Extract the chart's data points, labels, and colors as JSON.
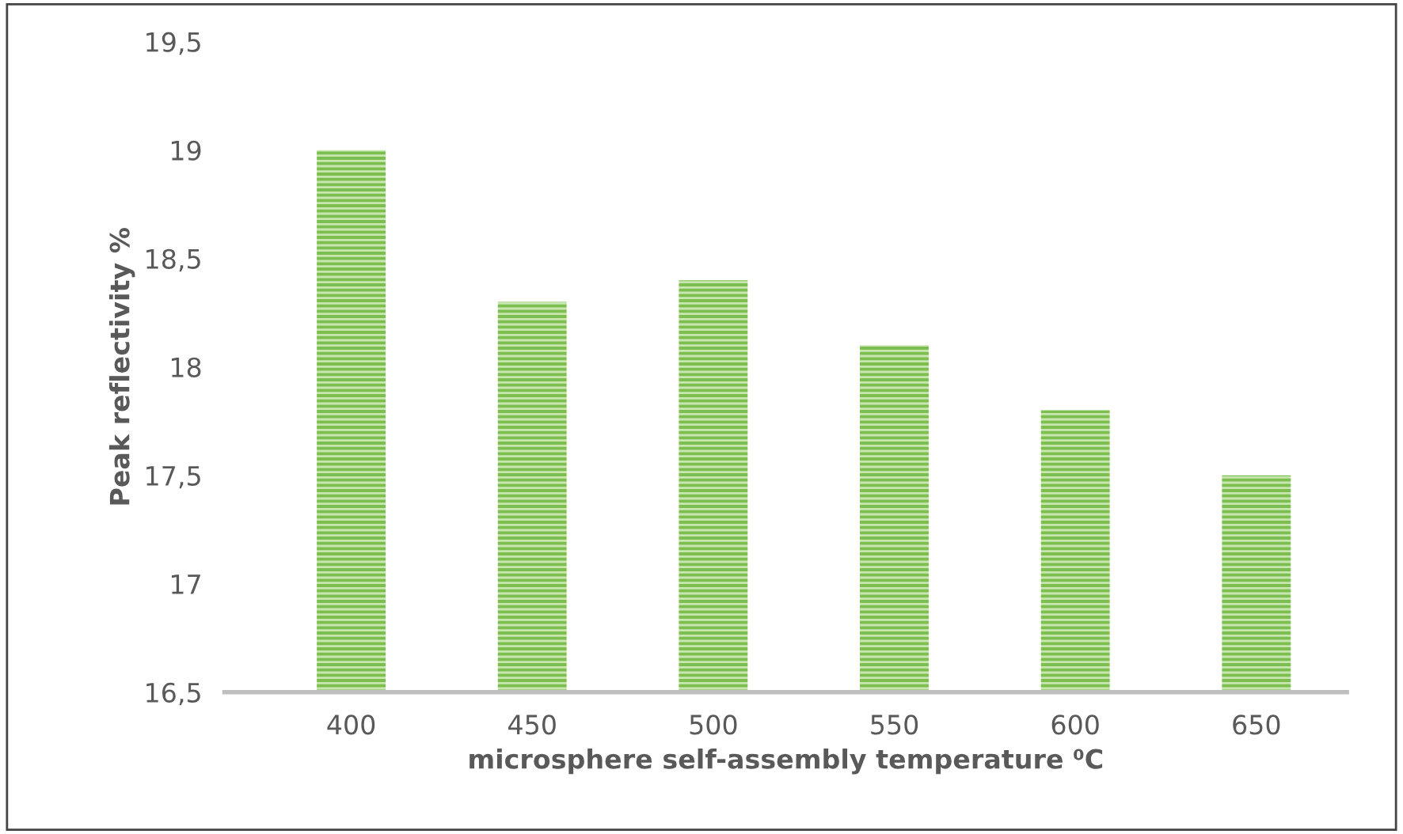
{
  "chart_data": {
    "type": "bar",
    "xlabel": "microsphere self-assembly temperature ⁰C",
    "ylabel": "Peak reflectivity %",
    "categories": [
      "400",
      "450",
      "500",
      "550",
      "600",
      "650"
    ],
    "values": [
      19,
      18.3,
      18.4,
      18.1,
      17.8,
      17.5
    ],
    "color": "#7dbf4f",
    "ylim": [
      16.5,
      19.5
    ],
    "yticks": [
      {
        "value": 16.5,
        "label": "16,5"
      },
      17,
      {
        "value": 17.5,
        "label": "17,5"
      },
      18,
      {
        "value": 18.5,
        "label": "18,5"
      },
      19,
      {
        "value": 19.5,
        "label": "19,5"
      }
    ],
    "grid": false,
    "legend": false
  }
}
